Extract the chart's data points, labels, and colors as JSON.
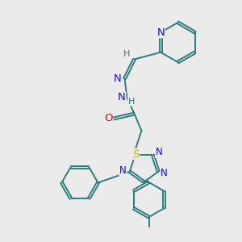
{
  "bg_color": "#ebebeb",
  "bond_color": "#2d7d7d",
  "N_color": "#1010cc",
  "O_color": "#cc1010",
  "S_color": "#ccaa00",
  "line_width": 1.4,
  "font_size": 8.5,
  "fig_size": [
    3.0,
    3.0
  ],
  "dpi": 100,
  "xlim": [
    0,
    10
  ],
  "ylim": [
    0,
    10
  ]
}
